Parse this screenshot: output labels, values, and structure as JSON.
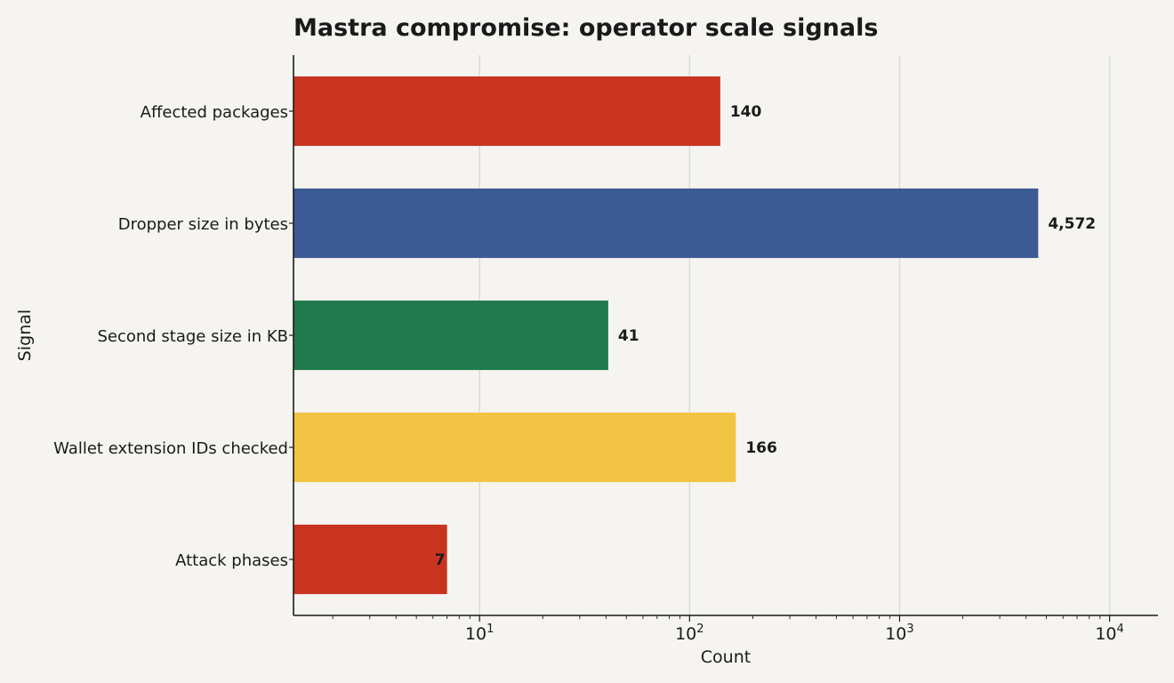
{
  "chart_data": {
    "type": "bar",
    "orientation": "horizontal",
    "title": "Mastra compromise: operator scale signals",
    "xlabel": "Count",
    "ylabel": "Signal",
    "x_scale": "log",
    "xlim": [
      1.3,
      17000
    ],
    "grid": "x-major",
    "x_ticks": [
      {
        "base": "10",
        "exp": "1"
      },
      {
        "base": "10",
        "exp": "2"
      },
      {
        "base": "10",
        "exp": "3"
      },
      {
        "base": "10",
        "exp": "4"
      }
    ],
    "categories": [
      "Affected packages",
      "Dropper size in bytes",
      "Second stage size in KB",
      "Wallet extension IDs checked",
      "Attack phases"
    ],
    "values": [
      140,
      4572,
      41,
      166,
      7
    ],
    "value_labels": [
      "140",
      "4,572",
      "41",
      "166",
      "7"
    ],
    "colors": [
      "#c93421",
      "#3c5b94",
      "#217a4d",
      "#f2c443",
      "#c93421"
    ]
  }
}
